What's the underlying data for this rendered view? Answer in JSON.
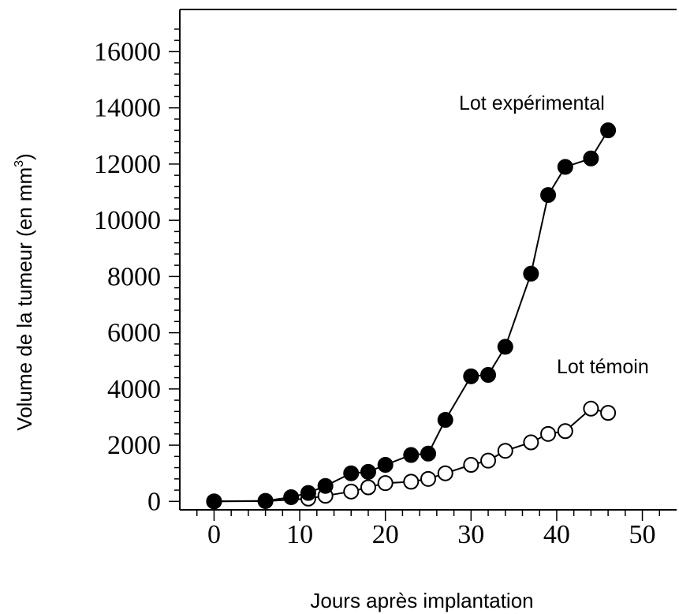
{
  "chart_data": {
    "type": "line",
    "xlabel": "Jours après implantation",
    "ylabel_main": "Volume de la tumeur (en mm",
    "ylabel_sup": "3",
    "ylabel_end": ")",
    "xlim": [
      -4,
      54
    ],
    "ylim": [
      -300,
      17500
    ],
    "x_ticks": [
      0,
      10,
      20,
      30,
      40,
      50
    ],
    "y_ticks": [
      0,
      2000,
      4000,
      6000,
      8000,
      10000,
      12000,
      14000,
      16000
    ],
    "x_tick_labels": [
      "0",
      "10",
      "20",
      "30",
      "40",
      "50"
    ],
    "y_tick_labels": [
      "0",
      "2000",
      "4000",
      "6000",
      "8000",
      "10000",
      "12000",
      "14000",
      "16000"
    ],
    "series": [
      {
        "name": "Lot expérimental",
        "marker": "filled-circle",
        "x": [
          0,
          6,
          9,
          11,
          13,
          16,
          18,
          20,
          23,
          25,
          27,
          30,
          32,
          34,
          37,
          39,
          41,
          44,
          46
        ],
        "y": [
          0,
          20,
          150,
          300,
          550,
          1000,
          1050,
          1300,
          1650,
          1700,
          2900,
          4450,
          4500,
          5500,
          8100,
          10900,
          11900,
          12200,
          13200
        ]
      },
      {
        "name": "Lot témoin",
        "marker": "open-circle",
        "x": [
          0,
          6,
          11,
          13,
          16,
          18,
          20,
          23,
          25,
          27,
          30,
          32,
          34,
          37,
          39,
          41,
          44,
          46
        ],
        "y": [
          0,
          10,
          100,
          200,
          350,
          500,
          650,
          700,
          800,
          1000,
          1300,
          1450,
          1800,
          2100,
          2400,
          2500,
          3300,
          3150
        ]
      }
    ],
    "colors": {
      "line": "#000000",
      "open_fill": "#ffffff"
    }
  }
}
